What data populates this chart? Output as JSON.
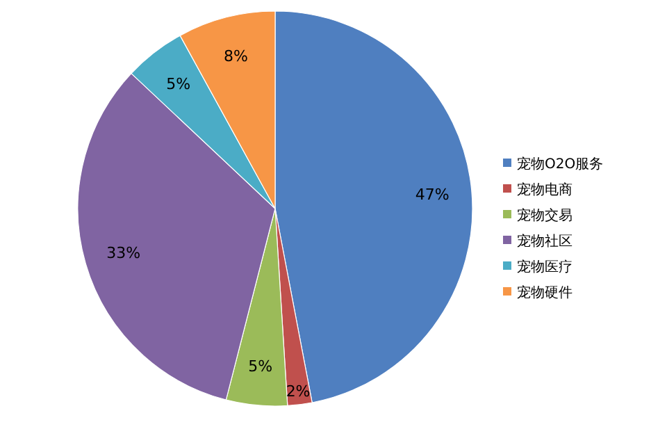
{
  "chart_data": {
    "type": "pie",
    "categories": [
      "宠物O2O服务",
      "宠物电商",
      "宠物交易",
      "宠物社区",
      "宠物医疗",
      "宠物硬件"
    ],
    "values": [
      47,
      2,
      5,
      33,
      5,
      8
    ],
    "colors": [
      "#4f7fc0",
      "#c0504d",
      "#9bbb59",
      "#8064a2",
      "#4bacc6",
      "#f79646"
    ],
    "value_labels": [
      "47%",
      "2%",
      "5%",
      "33%",
      "5%",
      "8%"
    ],
    "legend": "right"
  }
}
